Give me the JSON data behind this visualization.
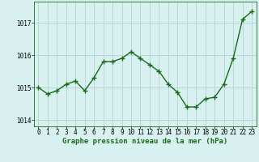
{
  "x": [
    0,
    1,
    2,
    3,
    4,
    5,
    6,
    7,
    8,
    9,
    10,
    11,
    12,
    13,
    14,
    15,
    16,
    17,
    18,
    19,
    20,
    21,
    22,
    23
  ],
  "y": [
    1015.0,
    1014.8,
    1014.9,
    1015.1,
    1015.2,
    1014.9,
    1015.3,
    1015.8,
    1015.8,
    1015.9,
    1016.1,
    1015.9,
    1015.7,
    1015.5,
    1015.1,
    1014.85,
    1014.4,
    1014.4,
    1014.65,
    1014.7,
    1015.1,
    1015.9,
    1017.1,
    1017.35
  ],
  "line_color": "#1a6b1a",
  "marker": "D",
  "marker_size": 2.0,
  "linewidth": 1.0,
  "bg_color": "#d8f0f0",
  "grid_color": "#b8d8d8",
  "xlabel": "Graphe pression niveau de la mer (hPa)",
  "xlabel_fontsize": 6.5,
  "tick_fontsize": 5.5,
  "ylim": [
    1013.8,
    1017.65
  ],
  "yticks": [
    1014,
    1015,
    1016,
    1017
  ],
  "xlim": [
    -0.5,
    23.5
  ],
  "xticks": [
    0,
    1,
    2,
    3,
    4,
    5,
    6,
    7,
    8,
    9,
    10,
    11,
    12,
    13,
    14,
    15,
    16,
    17,
    18,
    19,
    20,
    21,
    22,
    23
  ]
}
